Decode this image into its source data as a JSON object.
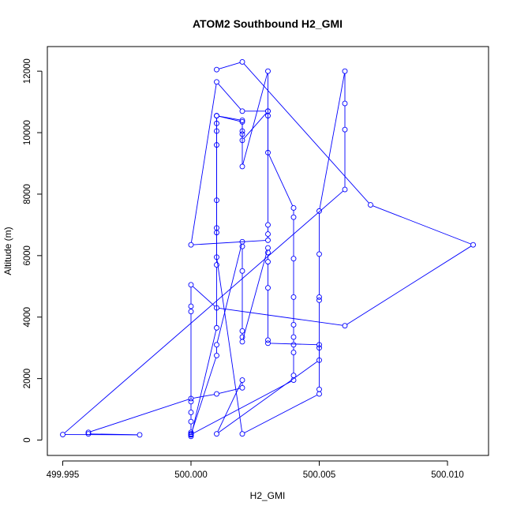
{
  "chart_data": {
    "type": "line",
    "title": "ATOM2 Southbound H2_GMI",
    "xlabel": "H2_GMI",
    "ylabel": "Altitude (m)",
    "xlim": [
      499.9944,
      500.0116
    ],
    "ylim": [
      -500,
      12800
    ],
    "x_ticks": [
      499.995,
      500.0,
      500.005,
      500.01
    ],
    "x_tick_labels": [
      "499.995",
      "500.000",
      "500.005",
      "500.010"
    ],
    "y_ticks": [
      0,
      2000,
      4000,
      6000,
      8000,
      10000,
      12000
    ],
    "y_tick_labels": [
      "0",
      "2000",
      "4000",
      "6000",
      "8000",
      "10000",
      "12000"
    ],
    "marker": "open-circle",
    "series": [
      {
        "color": "#0000FF",
        "points": [
          [
            500.001,
            12050
          ],
          [
            500.002,
            12300
          ],
          [
            500.007,
            7650
          ],
          [
            500.011,
            6350
          ],
          [
            500.006,
            3720
          ],
          [
            500.001,
            4300
          ],
          [
            500.0,
            5050
          ],
          [
            500.0,
            4350
          ],
          [
            500.0,
            4180
          ],
          [
            500.0,
            1250
          ],
          [
            500.0,
            900
          ],
          [
            500.0,
            600
          ],
          [
            500.0,
            250
          ],
          [
            500.0,
            200
          ],
          [
            500.0,
            170
          ],
          [
            500.0,
            120
          ],
          [
            500.001,
            3650
          ],
          [
            500.001,
            5700
          ],
          [
            500.001,
            10550
          ],
          [
            500.002,
            10350
          ],
          [
            500.002,
            10050
          ],
          [
            500.002,
            9750
          ],
          [
            500.003,
            10700
          ],
          [
            500.003,
            10550
          ],
          [
            500.003,
            9350
          ],
          [
            500.004,
            7550
          ],
          [
            500.004,
            7250
          ],
          [
            500.004,
            5900
          ],
          [
            500.004,
            4650
          ],
          [
            500.004,
            3750
          ],
          [
            500.004,
            3350
          ],
          [
            500.004,
            3100
          ],
          [
            500.004,
            2850
          ],
          [
            500.004,
            2100
          ],
          [
            500.004,
            1950
          ],
          [
            500.0,
            180
          ],
          [
            500.001,
            2750
          ],
          [
            500.001,
            3100
          ],
          [
            500.002,
            6450
          ],
          [
            500.002,
            6300
          ],
          [
            500.002,
            5500
          ],
          [
            500.002,
            3550
          ],
          [
            500.002,
            3350
          ],
          [
            500.002,
            3200
          ],
          [
            500.003,
            6250
          ],
          [
            500.003,
            6100
          ],
          [
            500.003,
            5800
          ],
          [
            500.003,
            4950
          ],
          [
            500.003,
            3250
          ],
          [
            500.003,
            3150
          ],
          [
            500.005,
            3100
          ],
          [
            500.005,
            3000
          ],
          [
            500.005,
            2600
          ],
          [
            500.001,
            200
          ],
          [
            500.002,
            1950
          ],
          [
            500.002,
            1700
          ],
          [
            500.001,
            1500
          ],
          [
            500.0,
            1350
          ],
          [
            499.996,
            250
          ],
          [
            499.996,
            200
          ],
          [
            499.998,
            170
          ],
          [
            499.995,
            180
          ],
          [
            500.006,
            8150
          ],
          [
            500.006,
            10100
          ],
          [
            500.006,
            10950
          ],
          [
            500.006,
            12000
          ],
          [
            500.005,
            7450
          ],
          [
            500.005,
            6050
          ],
          [
            500.005,
            4650
          ],
          [
            500.005,
            4550
          ],
          [
            500.005,
            1650
          ],
          [
            500.005,
            1500
          ],
          [
            500.002,
            200
          ],
          [
            500.001,
            5950
          ],
          [
            500.001,
            6750
          ],
          [
            500.001,
            6900
          ],
          [
            500.001,
            7800
          ],
          [
            500.001,
            9600
          ],
          [
            500.001,
            10050
          ],
          [
            500.001,
            10300
          ],
          [
            500.001,
            10550
          ],
          [
            500.002,
            10400
          ],
          [
            500.002,
            9950
          ],
          [
            500.002,
            8900
          ],
          [
            500.003,
            12000
          ],
          [
            500.003,
            7000
          ],
          [
            500.003,
            6700
          ],
          [
            500.003,
            6500
          ],
          [
            500.0,
            6350
          ],
          [
            500.001,
            11650
          ],
          [
            500.002,
            10700
          ],
          [
            500.003,
            10700
          ]
        ]
      }
    ]
  }
}
